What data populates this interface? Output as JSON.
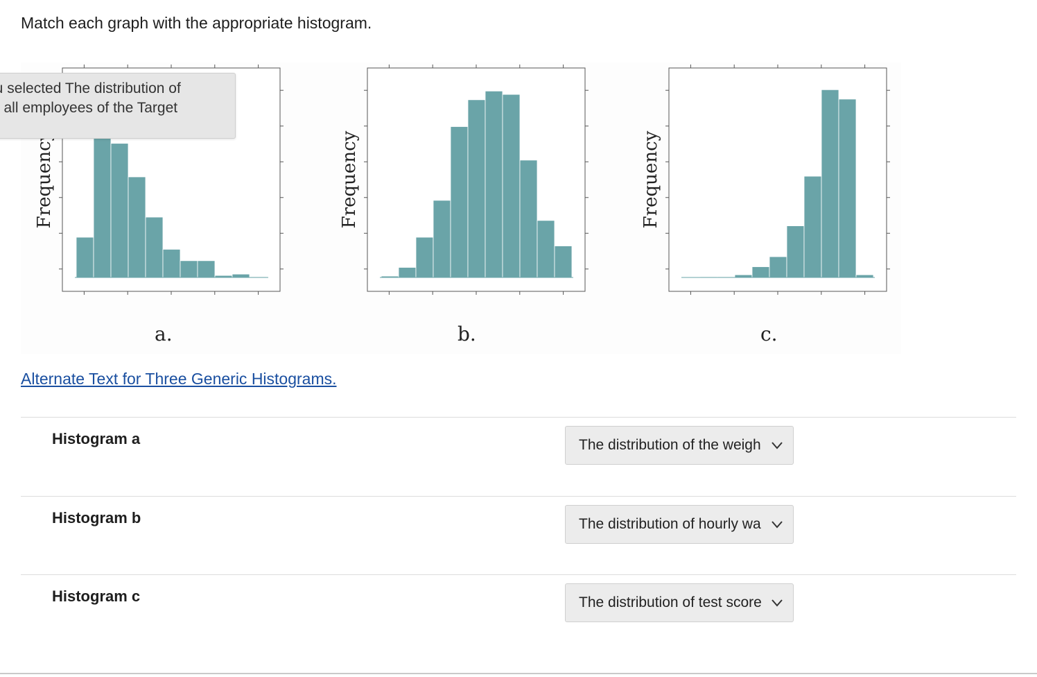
{
  "question": "Match each graph with the appropriate histogram.",
  "tooltip": {
    "lines": [
      "ou selected The distribution of",
      "or all employees of the Target"
    ]
  },
  "histograms": [
    {
      "ylabel": "Frequency",
      "caption": "a.",
      "values": [
        6,
        22,
        20,
        15,
        9,
        4.2,
        2.5,
        2.5,
        0.3,
        0.5,
        0.1
      ],
      "ymax": 30,
      "color": "#6aa4a8"
    },
    {
      "ylabel": "Frequency",
      "caption": "b.",
      "values": [
        0.2,
        1.5,
        6,
        11.5,
        22.5,
        26.5,
        27.8,
        27.3,
        17.5,
        8.5,
        4.7
      ],
      "ymax": 30,
      "color": "#6aa4a8"
    },
    {
      "ylabel": "Frequency",
      "caption": "c.",
      "values": [
        0,
        0.1,
        0.1,
        0.4,
        1.6,
        3.1,
        7.7,
        15.1,
        28,
        26.6,
        0.4
      ],
      "ymax": 30,
      "color": "#6aa4a8"
    }
  ],
  "alt_link": "Alternate Text for Three Generic Histograms.",
  "matches": [
    {
      "label": "Histogram a",
      "selected": "The distribution of the weigh"
    },
    {
      "label": "Histogram b",
      "selected": "The distribution of hourly wa"
    },
    {
      "label": "Histogram c",
      "selected": "The distribution of test score"
    }
  ]
}
